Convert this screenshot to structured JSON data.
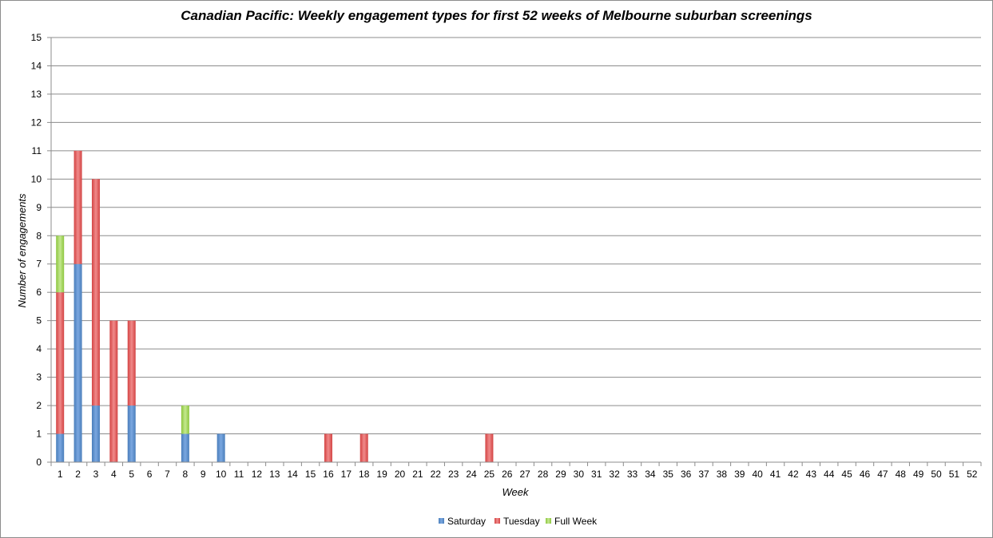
{
  "chart_data": {
    "type": "bar",
    "stacked": true,
    "title": "Canadian Pacific: Weekly engagement types for first 52 weeks of Melbourne suburban screenings",
    "xlabel": "Week",
    "ylabel": "Number of engagements",
    "ylim": [
      0,
      15
    ],
    "yticks": [
      "0",
      "1",
      "2",
      "3",
      "4",
      "5",
      "6",
      "7",
      "8",
      "9",
      "10",
      "11",
      "12",
      "13",
      "14",
      "15"
    ],
    "grid": true,
    "legend_position": "bottom",
    "categories": [
      "1",
      "2",
      "3",
      "4",
      "5",
      "6",
      "7",
      "8",
      "9",
      "10",
      "11",
      "12",
      "13",
      "14",
      "15",
      "16",
      "17",
      "18",
      "19",
      "20",
      "21",
      "22",
      "23",
      "24",
      "25",
      "26",
      "27",
      "28",
      "29",
      "30",
      "31",
      "32",
      "33",
      "34",
      "35",
      "36",
      "37",
      "38",
      "39",
      "40",
      "41",
      "42",
      "43",
      "44",
      "45",
      "46",
      "47",
      "48",
      "49",
      "50",
      "51",
      "52"
    ],
    "series": [
      {
        "name": "Saturday",
        "color": "#4a7ebb",
        "values": [
          1,
          7,
          2,
          0,
          2,
          0,
          0,
          1,
          0,
          1,
          0,
          0,
          0,
          0,
          0,
          0,
          0,
          0,
          0,
          0,
          0,
          0,
          0,
          0,
          0,
          0,
          0,
          0,
          0,
          0,
          0,
          0,
          0,
          0,
          0,
          0,
          0,
          0,
          0,
          0,
          0,
          0,
          0,
          0,
          0,
          0,
          0,
          0,
          0,
          0,
          0,
          0
        ]
      },
      {
        "name": "Tuesday",
        "color": "#d34343",
        "values": [
          5,
          4,
          8,
          5,
          3,
          0,
          0,
          0,
          0,
          0,
          0,
          0,
          0,
          0,
          0,
          1,
          0,
          1,
          0,
          0,
          0,
          0,
          0,
          0,
          1,
          0,
          0,
          0,
          0,
          0,
          0,
          0,
          0,
          0,
          0,
          0,
          0,
          0,
          0,
          0,
          0,
          0,
          0,
          0,
          0,
          0,
          0,
          0,
          0,
          0,
          0,
          0
        ]
      },
      {
        "name": "Full Week",
        "color": "#8dc63f",
        "values": [
          2,
          0,
          0,
          0,
          0,
          0,
          0,
          1,
          0,
          0,
          0,
          0,
          0,
          0,
          0,
          0,
          0,
          0,
          0,
          0,
          0,
          0,
          0,
          0,
          0,
          0,
          0,
          0,
          0,
          0,
          0,
          0,
          0,
          0,
          0,
          0,
          0,
          0,
          0,
          0,
          0,
          0,
          0,
          0,
          0,
          0,
          0,
          0,
          0,
          0,
          0,
          0
        ]
      }
    ]
  }
}
